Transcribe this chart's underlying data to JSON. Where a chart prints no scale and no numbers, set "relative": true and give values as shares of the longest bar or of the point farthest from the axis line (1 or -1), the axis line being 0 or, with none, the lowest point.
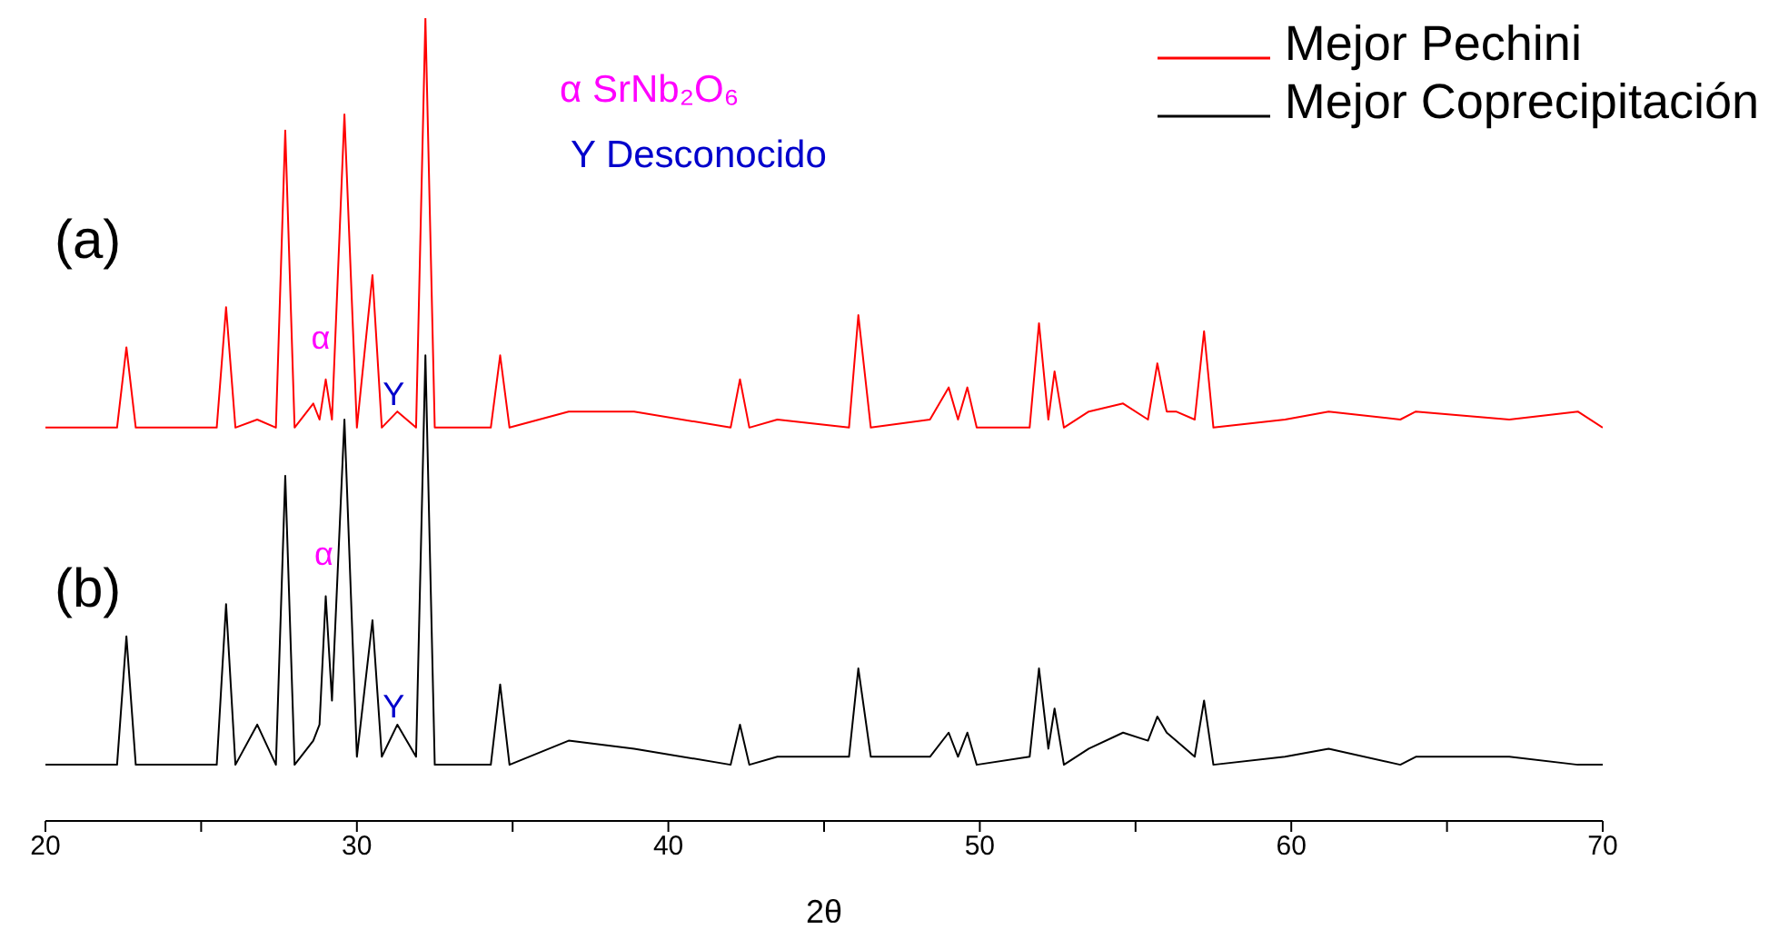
{
  "chart_data": {
    "type": "line",
    "relative": true,
    "xlabel": "2θ",
    "xlim": [
      20,
      70
    ],
    "xticks": [
      20,
      {
        "value": 25,
        "label": null
      },
      30,
      {
        "value": 35,
        "label": null
      },
      40,
      {
        "value": 45,
        "label": null
      },
      50,
      {
        "value": 55,
        "label": null
      },
      60,
      {
        "value": 65,
        "label": null
      },
      70
    ],
    "legend": "top right",
    "marker": "none",
    "line_style": "solid",
    "grid": false,
    "annotations": [
      "(a)",
      "(b)",
      "α SrNb₂O₆",
      "Y Desconocido",
      {
        "text": "α",
        "x": 29.0,
        "y": 0.58
      },
      {
        "text": "Y",
        "x": 31.3,
        "y": 0.51
      },
      {
        "text": "α",
        "x": 29.1,
        "y": 0.31
      },
      {
        "text": "Y",
        "x": 31.3,
        "y": 0.12
      }
    ],
    "series": [
      {
        "name": "Mejor Pechini",
        "color": "#ff0000",
        "x": [
          20,
          22.3,
          22.6,
          22.9,
          25.5,
          25.8,
          26.1,
          26.8,
          27.4,
          27.7,
          28.0,
          28.6,
          28.8,
          29.0,
          29.2,
          29.6,
          30.0,
          30.5,
          30.8,
          31.3,
          31.9,
          32.2,
          32.5,
          34.3,
          34.6,
          34.9,
          36.8,
          38.9,
          42.0,
          42.3,
          42.6,
          43.5,
          45.8,
          46.1,
          46.5,
          48.4,
          49.0,
          49.3,
          49.6,
          49.9,
          51.6,
          51.9,
          52.2,
          52.4,
          52.7,
          53.5,
          54.6,
          55.4,
          55.7,
          56.0,
          56.3,
          56.9,
          57.2,
          57.5,
          59.8,
          61.2,
          63.5,
          64.0,
          67.0,
          69.2,
          70
        ],
        "values": [
          0.49,
          0.49,
          0.59,
          0.49,
          0.49,
          0.64,
          0.49,
          0.5,
          0.49,
          0.86,
          0.49,
          0.52,
          0.5,
          0.55,
          0.5,
          0.88,
          0.49,
          0.68,
          0.49,
          0.51,
          0.49,
          1.0,
          0.49,
          0.49,
          0.58,
          0.49,
          0.51,
          0.51,
          0.49,
          0.55,
          0.49,
          0.5,
          0.49,
          0.63,
          0.49,
          0.5,
          0.54,
          0.5,
          0.54,
          0.49,
          0.49,
          0.62,
          0.5,
          0.56,
          0.49,
          0.51,
          0.52,
          0.5,
          0.57,
          0.51,
          0.51,
          0.5,
          0.61,
          0.49,
          0.5,
          0.51,
          0.5,
          0.51,
          0.5,
          0.51,
          0.49
        ]
      },
      {
        "name": "Mejor Coprecipitación",
        "color": "#000000",
        "x": [
          20,
          22.3,
          22.6,
          22.9,
          25.5,
          25.8,
          26.1,
          26.8,
          27.4,
          27.7,
          28.0,
          28.6,
          28.8,
          29.0,
          29.2,
          29.6,
          30.0,
          30.5,
          30.8,
          31.3,
          31.9,
          32.2,
          32.5,
          34.3,
          34.6,
          34.9,
          36.8,
          38.9,
          42.0,
          42.3,
          42.6,
          43.5,
          45.8,
          46.1,
          46.5,
          48.4,
          49.0,
          49.3,
          49.6,
          49.9,
          51.6,
          51.9,
          52.2,
          52.4,
          52.7,
          53.5,
          54.6,
          55.4,
          55.7,
          56.0,
          56.3,
          56.9,
          57.2,
          57.5,
          59.8,
          61.2,
          63.5,
          64.0,
          67.0,
          69.2,
          70
        ],
        "values": [
          0.07,
          0.07,
          0.23,
          0.07,
          0.07,
          0.27,
          0.07,
          0.12,
          0.07,
          0.43,
          0.07,
          0.1,
          0.12,
          0.28,
          0.15,
          0.5,
          0.08,
          0.25,
          0.08,
          0.12,
          0.08,
          0.58,
          0.07,
          0.07,
          0.17,
          0.07,
          0.1,
          0.09,
          0.07,
          0.12,
          0.07,
          0.08,
          0.08,
          0.19,
          0.08,
          0.08,
          0.11,
          0.08,
          0.11,
          0.07,
          0.08,
          0.19,
          0.09,
          0.14,
          0.07,
          0.09,
          0.11,
          0.1,
          0.13,
          0.11,
          0.1,
          0.08,
          0.15,
          0.07,
          0.08,
          0.09,
          0.07,
          0.08,
          0.08,
          0.07,
          0.07
        ]
      }
    ]
  }
}
